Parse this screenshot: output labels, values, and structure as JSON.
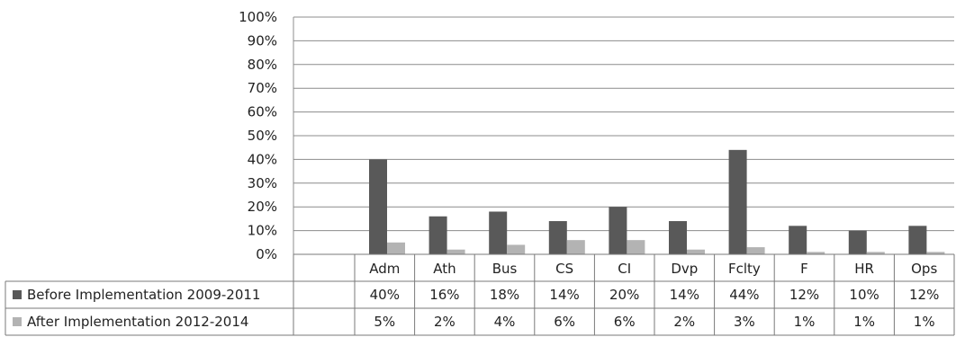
{
  "chart_data": {
    "type": "bar",
    "title": "",
    "xlabel": "",
    "ylabel": "",
    "ylim": [
      0,
      100
    ],
    "y_ticks": [
      "0%",
      "10%",
      "20%",
      "30%",
      "40%",
      "50%",
      "60%",
      "70%",
      "80%",
      "90%",
      "100%"
    ],
    "grid": true,
    "legend": "data-table",
    "categories": [
      "Adm",
      "Ath",
      "Bus",
      "CS",
      "CI",
      "Dvp",
      "Fclty",
      "F",
      "HR",
      "Ops"
    ],
    "series": [
      {
        "name": "Before Implementation 2009-2011",
        "color": "#595959",
        "values": [
          40,
          16,
          18,
          14,
          20,
          14,
          44,
          12,
          10,
          12
        ],
        "labels": [
          "40%",
          "16%",
          "18%",
          "14%",
          "20%",
          "14%",
          "44%",
          "12%",
          "10%",
          "12%"
        ]
      },
      {
        "name": "After Implementation 2012-2014",
        "color": "#b3b3b3",
        "values": [
          5,
          2,
          4,
          6,
          6,
          2,
          3,
          1,
          1,
          1
        ],
        "labels": [
          "5%",
          "2%",
          "4%",
          "6%",
          "6%",
          "2%",
          "3%",
          "1%",
          "1%",
          "1%"
        ]
      }
    ]
  }
}
